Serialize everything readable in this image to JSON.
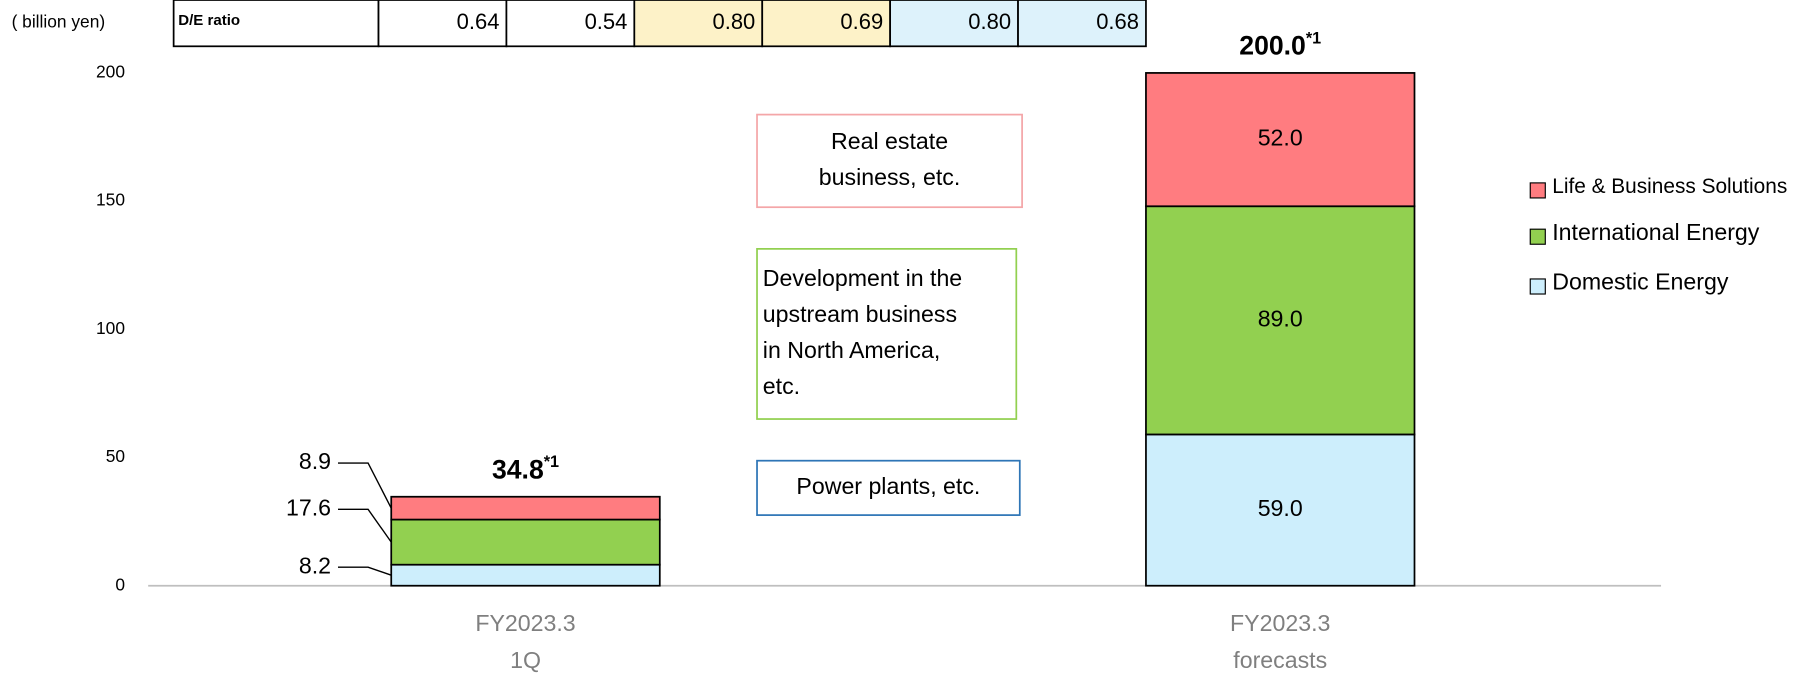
{
  "chart_data": {
    "type": "stacked_bar",
    "unit_label": "( billion yen)",
    "table": {
      "label": "D/E ratio",
      "values": [
        "0.64",
        "0.54",
        "0.80",
        "0.69",
        "0.80",
        "0.68"
      ],
      "cell_colors": [
        "#ffffff",
        "#ffffff",
        "#fdf2c8",
        "#fdf2c8",
        "#ddf2fb",
        "#ddf2fb"
      ]
    },
    "categories": [
      [
        "FY2023.3",
        "1Q"
      ],
      [
        "FY2023.3",
        "forecasts"
      ]
    ],
    "series": [
      {
        "name": "Domestic Energy",
        "color": "#cdeefc",
        "values": [
          8.2,
          59.0
        ],
        "value_labels": [
          "8.2",
          "59.0"
        ]
      },
      {
        "name": "International Energy",
        "color": "#92d050",
        "values": [
          17.6,
          89.0
        ],
        "value_labels": [
          "17.6",
          "89.0"
        ]
      },
      {
        "name": "Life & Business Solutions",
        "color": "#ff7c80",
        "values": [
          8.9,
          52.0
        ],
        "value_labels": [
          "8.9",
          "52.0"
        ]
      }
    ],
    "totals": [
      34.8,
      200.0
    ],
    "total_labels": [
      "34.8",
      "200.0"
    ],
    "total_note": "*1",
    "ylim": [
      0,
      200
    ],
    "yticks": [
      0,
      50,
      100,
      150,
      200
    ],
    "annotations": [
      {
        "lines": [
          "Real estate",
          "business, etc."
        ],
        "color": "#f4a6a8"
      },
      {
        "lines": [
          "Development in the",
          "upstream business",
          "in North America,",
          "etc."
        ],
        "color": "#92d050"
      },
      {
        "lines": [
          "Power plants, etc."
        ],
        "color": "#2e75b6"
      }
    ]
  }
}
